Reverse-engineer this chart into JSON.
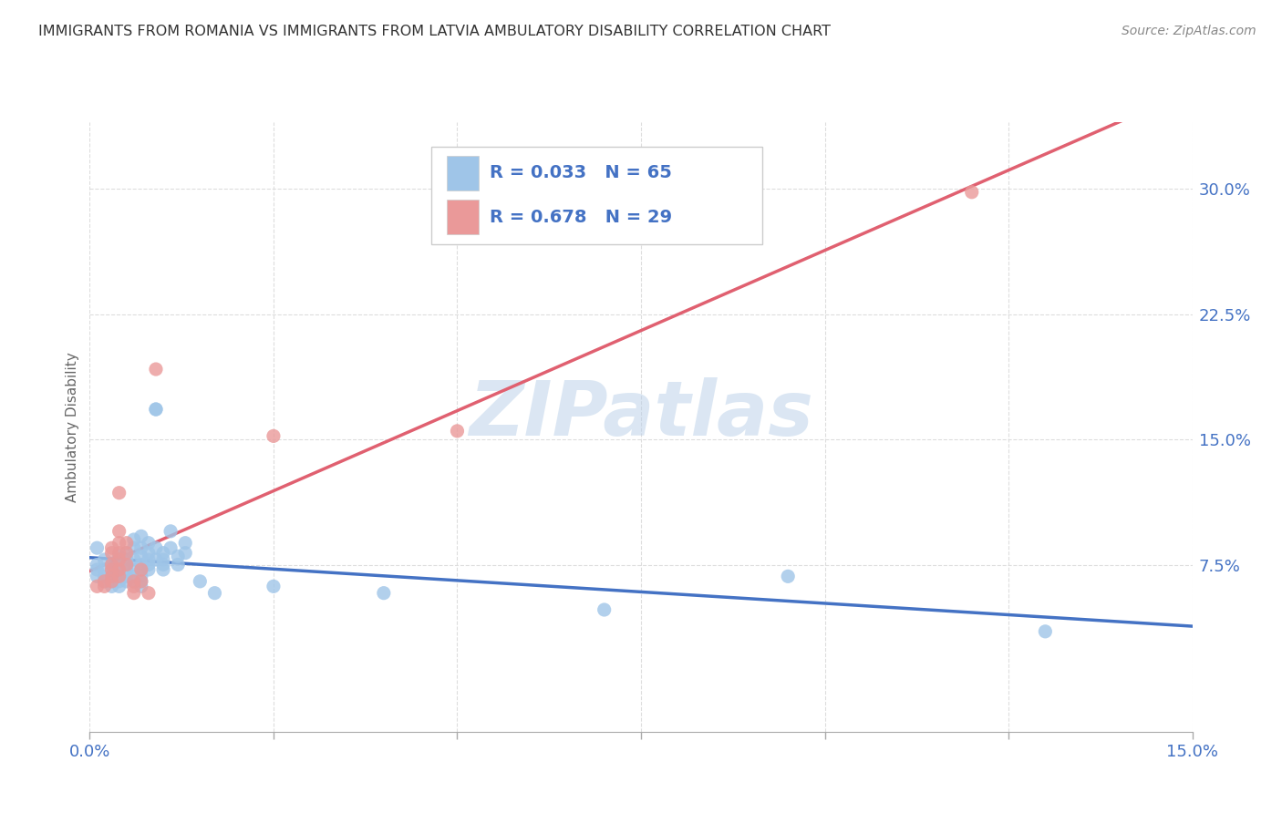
{
  "title": "IMMIGRANTS FROM ROMANIA VS IMMIGRANTS FROM LATVIA AMBULATORY DISABILITY CORRELATION CHART",
  "source": "Source: ZipAtlas.com",
  "ylabel": "Ambulatory Disability",
  "xlim": [
    0.0,
    0.15
  ],
  "ylim": [
    0.0,
    0.32
  ],
  "xtick_positions": [
    0.0,
    0.025,
    0.05,
    0.075,
    0.1,
    0.125,
    0.15
  ],
  "xtick_labels": [
    "0.0%",
    "",
    "",
    "",
    "",
    "",
    "15.0%"
  ],
  "yticks": [
    0.075,
    0.15,
    0.225,
    0.3
  ],
  "ytick_labels": [
    "7.5%",
    "15.0%",
    "22.5%",
    "30.0%"
  ],
  "romania_color": "#9fc5e8",
  "latvia_color": "#ea9999",
  "romania_line_color": "#4472c4",
  "latvia_line_color": "#e06070",
  "romania_R": 0.033,
  "romania_N": 65,
  "latvia_R": 0.678,
  "latvia_N": 29,
  "romania_scatter": [
    [
      0.001,
      0.085
    ],
    [
      0.001,
      0.075
    ],
    [
      0.001,
      0.072
    ],
    [
      0.001,
      0.068
    ],
    [
      0.002,
      0.078
    ],
    [
      0.002,
      0.072
    ],
    [
      0.002,
      0.068
    ],
    [
      0.002,
      0.065
    ],
    [
      0.003,
      0.075
    ],
    [
      0.003,
      0.072
    ],
    [
      0.003,
      0.068
    ],
    [
      0.003,
      0.065
    ],
    [
      0.003,
      0.062
    ],
    [
      0.004,
      0.08
    ],
    [
      0.004,
      0.075
    ],
    [
      0.004,
      0.072
    ],
    [
      0.004,
      0.068
    ],
    [
      0.004,
      0.065
    ],
    [
      0.004,
      0.062
    ],
    [
      0.005,
      0.082
    ],
    [
      0.005,
      0.078
    ],
    [
      0.005,
      0.075
    ],
    [
      0.005,
      0.072
    ],
    [
      0.005,
      0.068
    ],
    [
      0.005,
      0.065
    ],
    [
      0.006,
      0.09
    ],
    [
      0.006,
      0.085
    ],
    [
      0.006,
      0.078
    ],
    [
      0.006,
      0.072
    ],
    [
      0.006,
      0.068
    ],
    [
      0.006,
      0.065
    ],
    [
      0.007,
      0.092
    ],
    [
      0.007,
      0.085
    ],
    [
      0.007,
      0.08
    ],
    [
      0.007,
      0.075
    ],
    [
      0.007,
      0.072
    ],
    [
      0.007,
      0.068
    ],
    [
      0.007,
      0.065
    ],
    [
      0.007,
      0.062
    ],
    [
      0.008,
      0.088
    ],
    [
      0.008,
      0.082
    ],
    [
      0.008,
      0.078
    ],
    [
      0.008,
      0.075
    ],
    [
      0.008,
      0.072
    ],
    [
      0.009,
      0.168
    ],
    [
      0.009,
      0.168
    ],
    [
      0.009,
      0.085
    ],
    [
      0.009,
      0.078
    ],
    [
      0.01,
      0.082
    ],
    [
      0.01,
      0.078
    ],
    [
      0.01,
      0.075
    ],
    [
      0.01,
      0.072
    ],
    [
      0.011,
      0.095
    ],
    [
      0.011,
      0.085
    ],
    [
      0.012,
      0.08
    ],
    [
      0.012,
      0.075
    ],
    [
      0.013,
      0.088
    ],
    [
      0.013,
      0.082
    ],
    [
      0.015,
      0.065
    ],
    [
      0.017,
      0.058
    ],
    [
      0.025,
      0.062
    ],
    [
      0.04,
      0.058
    ],
    [
      0.07,
      0.048
    ],
    [
      0.095,
      0.068
    ],
    [
      0.13,
      0.035
    ]
  ],
  "latvia_scatter": [
    [
      0.001,
      0.062
    ],
    [
      0.002,
      0.062
    ],
    [
      0.002,
      0.065
    ],
    [
      0.003,
      0.065
    ],
    [
      0.003,
      0.068
    ],
    [
      0.003,
      0.072
    ],
    [
      0.003,
      0.075
    ],
    [
      0.003,
      0.082
    ],
    [
      0.003,
      0.085
    ],
    [
      0.004,
      0.068
    ],
    [
      0.004,
      0.072
    ],
    [
      0.004,
      0.078
    ],
    [
      0.004,
      0.082
    ],
    [
      0.004,
      0.088
    ],
    [
      0.004,
      0.095
    ],
    [
      0.004,
      0.118
    ],
    [
      0.005,
      0.075
    ],
    [
      0.005,
      0.082
    ],
    [
      0.005,
      0.088
    ],
    [
      0.006,
      0.058
    ],
    [
      0.006,
      0.062
    ],
    [
      0.006,
      0.065
    ],
    [
      0.007,
      0.065
    ],
    [
      0.007,
      0.072
    ],
    [
      0.008,
      0.058
    ],
    [
      0.009,
      0.192
    ],
    [
      0.025,
      0.152
    ],
    [
      0.05,
      0.155
    ],
    [
      0.12,
      0.298
    ]
  ],
  "background_color": "#ffffff",
  "grid_color": "#dddddd",
  "watermark_text": "ZIPatlas",
  "watermark_color": "#b8cfe8",
  "watermark_alpha": 0.5
}
